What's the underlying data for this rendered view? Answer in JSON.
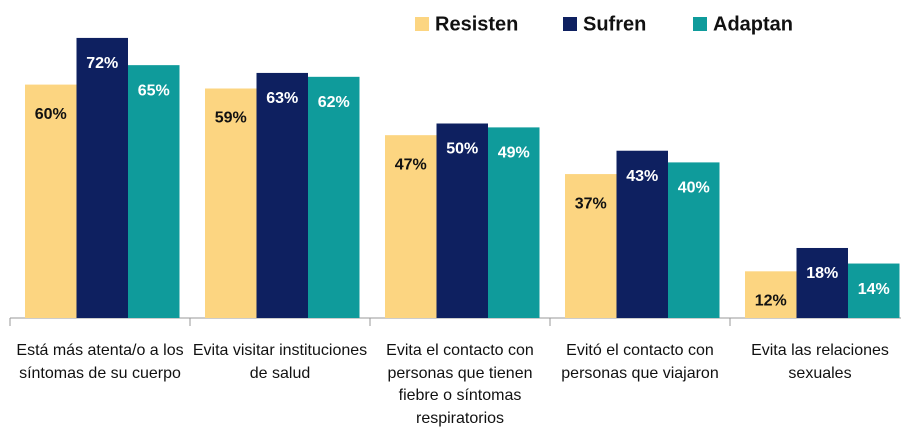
{
  "chart_data": {
    "type": "bar",
    "categories": [
      "Está más atenta/o a los síntomas de su cuerpo",
      "Evita visitar instituciones de salud",
      "Evita el contacto con personas que tienen fiebre o síntomas respiratorios",
      "Evitó el contacto con personas que viajaron",
      "Evita las relaciones sexuales"
    ],
    "series": [
      {
        "name": "Resisten",
        "color": "#fcd581",
        "values": [
          60,
          59,
          47,
          37,
          12
        ],
        "value_labels": [
          "60%",
          "59%",
          "47%",
          "37%",
          "12%"
        ]
      },
      {
        "name": "Sufren",
        "color": "#0e2060",
        "values": [
          72,
          63,
          50,
          43,
          18
        ],
        "value_labels": [
          "72%",
          "63%",
          "50%",
          "43%",
          "18%"
        ]
      },
      {
        "name": "Adaptan",
        "color": "#0f9b9b",
        "values": [
          65,
          62,
          49,
          40,
          14
        ],
        "value_labels": [
          "65%",
          "62%",
          "49%",
          "40%",
          "14%"
        ]
      }
    ],
    "legend": "top-right"
  }
}
